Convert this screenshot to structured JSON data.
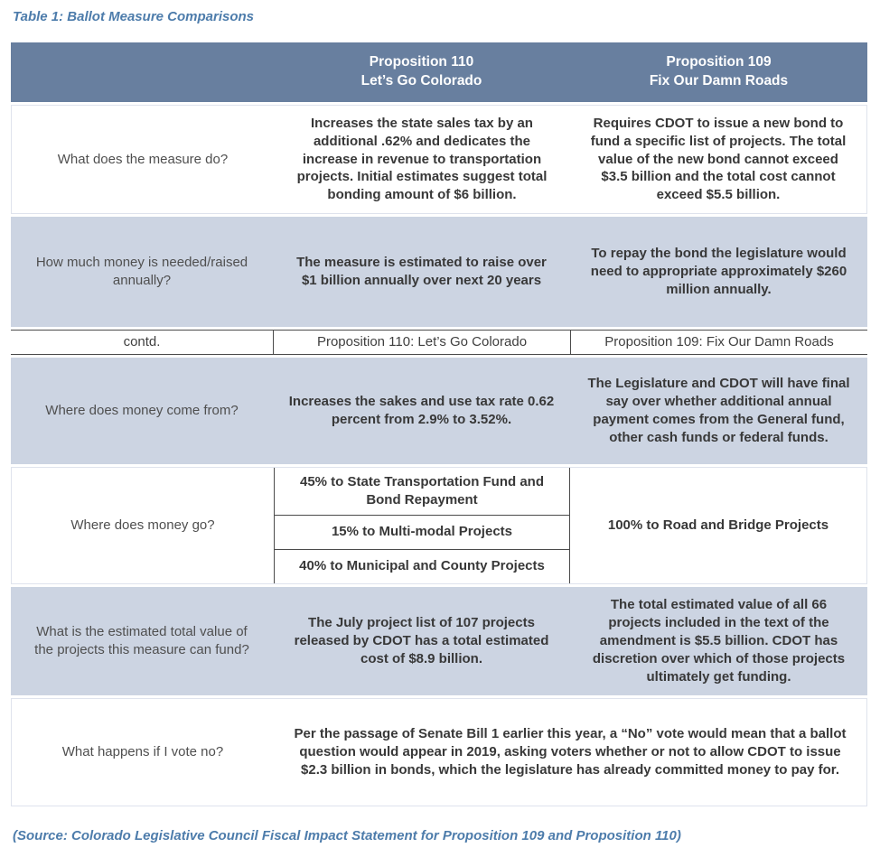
{
  "page": {
    "title": "Table 1: Ballot Measure Comparisons",
    "source": "(Source: Colorado Legislative Council Fiscal Impact Statement for Proposition 109 and Proposition 110)"
  },
  "colors": {
    "header_bg": "#687f9f",
    "row_alt_bg": "#ccd4e2",
    "accent_text": "#4d7cab",
    "body_text": "#383838",
    "divider": "#4b4b4b"
  },
  "table": {
    "header": {
      "prop110_line1": "Proposition 110",
      "prop110_line2": "Let’s Go Colorado",
      "prop109_line1": "Proposition 109",
      "prop109_line2": "Fix Our Damn Roads"
    },
    "row_measure_do": {
      "label": "What does the measure do?",
      "prop110": "Increases the state sales tax by an additional .62% and dedicates the increase in revenue to transportation projects. Initial estimates suggest total bonding amount of $6 billion.",
      "prop109": "Requires CDOT to issue a new bond to fund a specific list of projects. The total value of the new bond cannot exceed $3.5 billion and the total cost cannot exceed $5.5 billion."
    },
    "row_money_raised": {
      "label": "How much money is needed/raised annually?",
      "prop110": "The measure is estimated to raise over $1 billion annually over next 20 years",
      "prop109": "To repay the bond the legislature would need to appropriate approximately $260 million annually."
    },
    "row_contd": {
      "label": "contd.",
      "prop110": "Proposition 110: Let’s Go Colorado",
      "prop109": "Proposition 109: Fix Our Damn Roads"
    },
    "row_money_from": {
      "label": "Where does money come from?",
      "prop110": "Increases the sakes and use tax rate 0.62 percent from 2.9% to 3.52%.",
      "prop109": "The Legislature and CDOT will have final say over whether additional annual payment comes from the General fund, other cash funds or federal funds."
    },
    "row_money_go": {
      "label": "Where does money go?",
      "prop110_items": [
        "45% to State Transportation Fund and Bond Repayment",
        "15% to Multi-modal Projects",
        "40% to Municipal and County Projects"
      ],
      "prop109": "100% to Road and Bridge Projects"
    },
    "row_est_value": {
      "label": "What is the estimated total value of the projects this measure can fund?",
      "prop110": "The July project list of 107 projects released by CDOT has a total estimated cost of $8.9 billion.",
      "prop109": "The total estimated value of all 66 projects included in the text of the amendment is $5.5 billion. CDOT has discretion over which of those projects ultimately get funding."
    },
    "row_vote_no": {
      "label": "What happens if I vote no?",
      "answer": "Per the passage of Senate Bill 1 earlier this year, a “No” vote would mean that a ballot question would appear in 2019, asking voters whether or not to allow CDOT to issue $2.3 billion in bonds, which the legislature has already committed money to pay for."
    }
  }
}
